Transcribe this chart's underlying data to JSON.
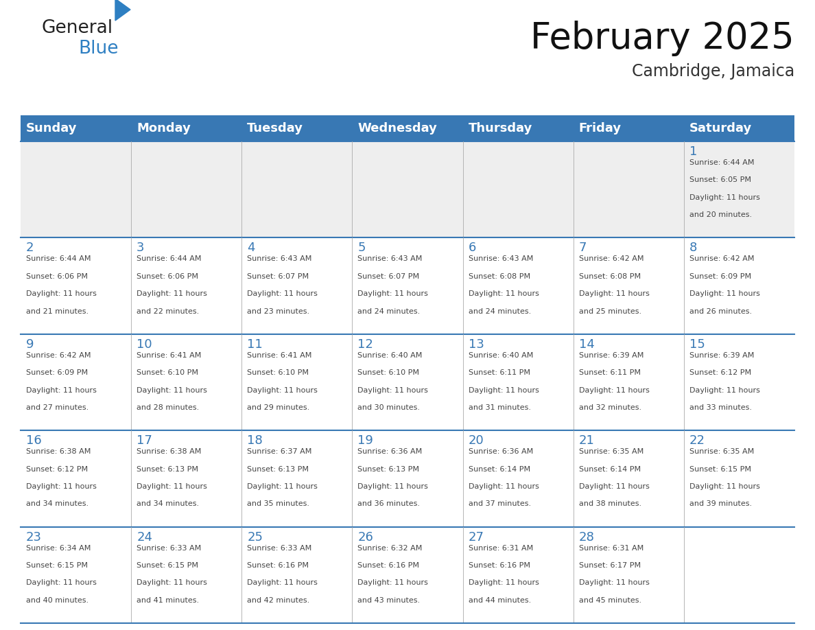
{
  "title": "February 2025",
  "subtitle": "Cambridge, Jamaica",
  "days_of_week": [
    "Sunday",
    "Monday",
    "Tuesday",
    "Wednesday",
    "Thursday",
    "Friday",
    "Saturday"
  ],
  "header_bg": "#3878b4",
  "header_text": "#ffffff",
  "row0_bg": "#eeeeee",
  "row_bg": "#ffffff",
  "day_number_color": "#3878b4",
  "text_color": "#444444",
  "border_color": "#3878b4",
  "border_light": "#aaaaaa",
  "calendar": [
    [
      null,
      null,
      null,
      null,
      null,
      null,
      1
    ],
    [
      2,
      3,
      4,
      5,
      6,
      7,
      8
    ],
    [
      9,
      10,
      11,
      12,
      13,
      14,
      15
    ],
    [
      16,
      17,
      18,
      19,
      20,
      21,
      22
    ],
    [
      23,
      24,
      25,
      26,
      27,
      28,
      null
    ]
  ],
  "sun_data": {
    "1": {
      "rise": "6:44 AM",
      "set": "6:05 PM",
      "hours": 11,
      "mins": 20
    },
    "2": {
      "rise": "6:44 AM",
      "set": "6:06 PM",
      "hours": 11,
      "mins": 21
    },
    "3": {
      "rise": "6:44 AM",
      "set": "6:06 PM",
      "hours": 11,
      "mins": 22
    },
    "4": {
      "rise": "6:43 AM",
      "set": "6:07 PM",
      "hours": 11,
      "mins": 23
    },
    "5": {
      "rise": "6:43 AM",
      "set": "6:07 PM",
      "hours": 11,
      "mins": 24
    },
    "6": {
      "rise": "6:43 AM",
      "set": "6:08 PM",
      "hours": 11,
      "mins": 24
    },
    "7": {
      "rise": "6:42 AM",
      "set": "6:08 PM",
      "hours": 11,
      "mins": 25
    },
    "8": {
      "rise": "6:42 AM",
      "set": "6:09 PM",
      "hours": 11,
      "mins": 26
    },
    "9": {
      "rise": "6:42 AM",
      "set": "6:09 PM",
      "hours": 11,
      "mins": 27
    },
    "10": {
      "rise": "6:41 AM",
      "set": "6:10 PM",
      "hours": 11,
      "mins": 28
    },
    "11": {
      "rise": "6:41 AM",
      "set": "6:10 PM",
      "hours": 11,
      "mins": 29
    },
    "12": {
      "rise": "6:40 AM",
      "set": "6:10 PM",
      "hours": 11,
      "mins": 30
    },
    "13": {
      "rise": "6:40 AM",
      "set": "6:11 PM",
      "hours": 11,
      "mins": 31
    },
    "14": {
      "rise": "6:39 AM",
      "set": "6:11 PM",
      "hours": 11,
      "mins": 32
    },
    "15": {
      "rise": "6:39 AM",
      "set": "6:12 PM",
      "hours": 11,
      "mins": 33
    },
    "16": {
      "rise": "6:38 AM",
      "set": "6:12 PM",
      "hours": 11,
      "mins": 34
    },
    "17": {
      "rise": "6:38 AM",
      "set": "6:13 PM",
      "hours": 11,
      "mins": 34
    },
    "18": {
      "rise": "6:37 AM",
      "set": "6:13 PM",
      "hours": 11,
      "mins": 35
    },
    "19": {
      "rise": "6:36 AM",
      "set": "6:13 PM",
      "hours": 11,
      "mins": 36
    },
    "20": {
      "rise": "6:36 AM",
      "set": "6:14 PM",
      "hours": 11,
      "mins": 37
    },
    "21": {
      "rise": "6:35 AM",
      "set": "6:14 PM",
      "hours": 11,
      "mins": 38
    },
    "22": {
      "rise": "6:35 AM",
      "set": "6:15 PM",
      "hours": 11,
      "mins": 39
    },
    "23": {
      "rise": "6:34 AM",
      "set": "6:15 PM",
      "hours": 11,
      "mins": 40
    },
    "24": {
      "rise": "6:33 AM",
      "set": "6:15 PM",
      "hours": 11,
      "mins": 41
    },
    "25": {
      "rise": "6:33 AM",
      "set": "6:16 PM",
      "hours": 11,
      "mins": 42
    },
    "26": {
      "rise": "6:32 AM",
      "set": "6:16 PM",
      "hours": 11,
      "mins": 43
    },
    "27": {
      "rise": "6:31 AM",
      "set": "6:16 PM",
      "hours": 11,
      "mins": 44
    },
    "28": {
      "rise": "6:31 AM",
      "set": "6:17 PM",
      "hours": 11,
      "mins": 45
    }
  },
  "logo_general_color": "#222222",
  "logo_blue_color": "#2e7fc2",
  "logo_triangle_color": "#2e7fc2",
  "figsize": [
    11.88,
    9.18
  ],
  "dpi": 100
}
